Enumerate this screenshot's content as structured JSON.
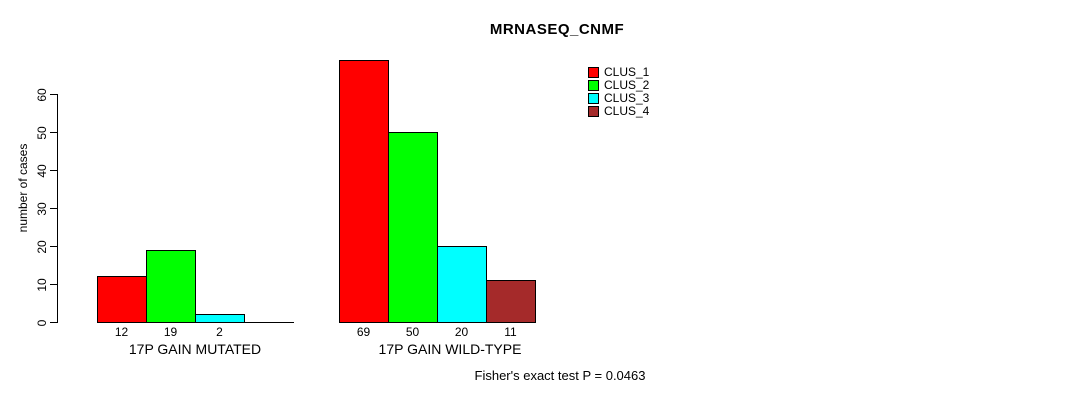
{
  "chart_data": {
    "type": "bar",
    "title": "MRNASEQ_CNMF",
    "xlabel": "",
    "ylabel": "number of cases",
    "ylim": [
      0,
      60
    ],
    "yticks": [
      0,
      10,
      20,
      30,
      40,
      50,
      60
    ],
    "grid": false,
    "legend": {
      "position": "top-right",
      "entries": [
        {
          "label": "CLUS_1",
          "color": "#FF0000"
        },
        {
          "label": "CLUS_2",
          "color": "#00FF00"
        },
        {
          "label": "CLUS_3",
          "color": "#00FFFF"
        },
        {
          "label": "CLUS_4",
          "color": "#A52A2A"
        }
      ]
    },
    "categories": [
      "17P GAIN MUTATED",
      "17P GAIN WILD-TYPE"
    ],
    "series": [
      {
        "name": "CLUS_1",
        "values": [
          12,
          69
        ]
      },
      {
        "name": "CLUS_2",
        "values": [
          19,
          50
        ]
      },
      {
        "name": "CLUS_3",
        "values": [
          2,
          20
        ]
      },
      {
        "name": "CLUS_4",
        "values": [
          0,
          11
        ]
      }
    ],
    "groups": [
      {
        "label": "17P GAIN MUTATED",
        "values": [
          12,
          19,
          2,
          0
        ],
        "value_labels": [
          "12",
          "19",
          "2",
          ""
        ]
      },
      {
        "label": "17P GAIN WILD-TYPE",
        "values": [
          69,
          50,
          20,
          11
        ],
        "value_labels": [
          "69",
          "50",
          "20",
          "11"
        ]
      }
    ],
    "annotation": "Fisher's exact test P = 0.0463"
  }
}
